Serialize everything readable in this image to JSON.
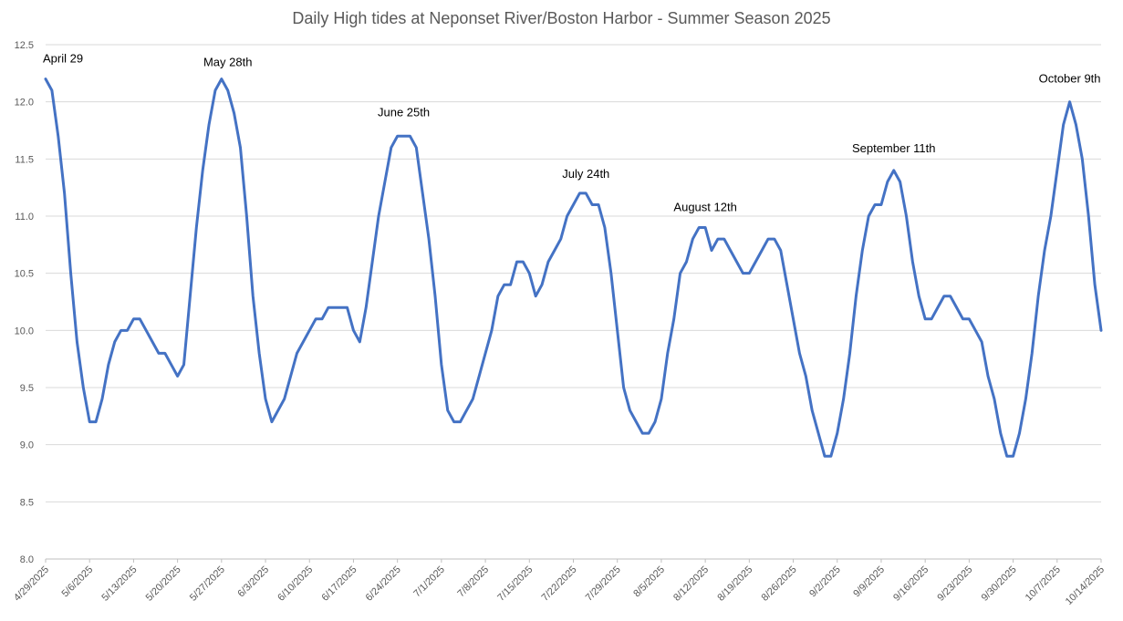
{
  "chart_data": {
    "type": "line",
    "title": "Daily High tides at Neponset River/Boston Harbor - Summer Season 2025",
    "xlabel": "",
    "ylabel": "",
    "ylim": [
      8.0,
      12.5
    ],
    "yticks": [
      "8.0",
      "8.5",
      "9.0",
      "9.5",
      "10.0",
      "10.5",
      "11.0",
      "11.5",
      "12.0",
      "12.5"
    ],
    "xtick_labels": [
      "4/29/2025",
      "5/6/2025",
      "5/13/2025",
      "5/20/2025",
      "5/27/2025",
      "6/3/2025",
      "6/10/2025",
      "6/17/2025",
      "6/24/2025",
      "7/1/2025",
      "7/8/2025",
      "7/15/2025",
      "7/22/2025",
      "7/29/2025",
      "8/5/2025",
      "8/12/2025",
      "8/19/2025",
      "8/26/2025",
      "9/2/2025",
      "9/9/2025",
      "9/16/2025",
      "9/23/2025",
      "9/30/2025",
      "10/7/2025",
      "10/14/2025"
    ],
    "x_start": "4/29/2025",
    "x_end": "10/14/2025",
    "grid": true,
    "line_color": "#4472C4",
    "series": [
      {
        "values": [
          12.2,
          12.1,
          11.7,
          11.2,
          10.5,
          9.9,
          9.5,
          9.2,
          9.2,
          9.4,
          9.7,
          9.9,
          10.0,
          10.0,
          10.1,
          10.1,
          10.0,
          9.9,
          9.8,
          9.8,
          9.7,
          9.6,
          9.7,
          10.3,
          10.9,
          11.4,
          11.8,
          12.1,
          12.2,
          12.1,
          11.9,
          11.6,
          11.0,
          10.3,
          9.8,
          9.4,
          9.2,
          9.3,
          9.4,
          9.6,
          9.8,
          9.9,
          10.0,
          10.1,
          10.1,
          10.2,
          10.2,
          10.2,
          10.2,
          10.0,
          9.9,
          10.2,
          10.6,
          11.0,
          11.3,
          11.6,
          11.7,
          11.7,
          11.7,
          11.6,
          11.2,
          10.8,
          10.3,
          9.7,
          9.3,
          9.2,
          9.2,
          9.3,
          9.4,
          9.6,
          9.8,
          10.0,
          10.3,
          10.4,
          10.4,
          10.6,
          10.6,
          10.5,
          10.3,
          10.4,
          10.6,
          10.7,
          10.8,
          11.0,
          11.1,
          11.2,
          11.2,
          11.1,
          11.1,
          10.9,
          10.5,
          10.0,
          9.5,
          9.3,
          9.2,
          9.1,
          9.1,
          9.2,
          9.4,
          9.8,
          10.1,
          10.5,
          10.6,
          10.8,
          10.9,
          10.9,
          10.7,
          10.8,
          10.8,
          10.7,
          10.6,
          10.5,
          10.5,
          10.6,
          10.7,
          10.8,
          10.8,
          10.7,
          10.4,
          10.1,
          9.8,
          9.6,
          9.3,
          9.1,
          8.9,
          8.9,
          9.1,
          9.4,
          9.8,
          10.3,
          10.7,
          11.0,
          11.1,
          11.1,
          11.3,
          11.4,
          11.3,
          11.0,
          10.6,
          10.3,
          10.1,
          10.1,
          10.2,
          10.3,
          10.3,
          10.2,
          10.1,
          10.1,
          10.0,
          9.9,
          9.6,
          9.4,
          9.1,
          8.9,
          8.9,
          9.1,
          9.4,
          9.8,
          10.3,
          10.7,
          11.0,
          11.4,
          11.8,
          12.0,
          11.8,
          11.5,
          11.0,
          10.4,
          10.0
        ]
      }
    ],
    "annotations": [
      {
        "text": "April 29",
        "x": "4/29/2025",
        "y": 12.2
      },
      {
        "text": "May 28th",
        "x": "5/28/2025",
        "y": 12.2
      },
      {
        "text": "June 25th",
        "x": "6/25/2025",
        "y": 11.7
      },
      {
        "text": "July 24th",
        "x": "7/24/2025",
        "y": 11.2
      },
      {
        "text": "August 12th",
        "x": "8/12/2025",
        "y": 10.9
      },
      {
        "text": "September 11th",
        "x": "9/11/2025",
        "y": 11.4
      },
      {
        "text": "October 9th",
        "x": "10/9/2025",
        "y": 12.0
      }
    ]
  }
}
